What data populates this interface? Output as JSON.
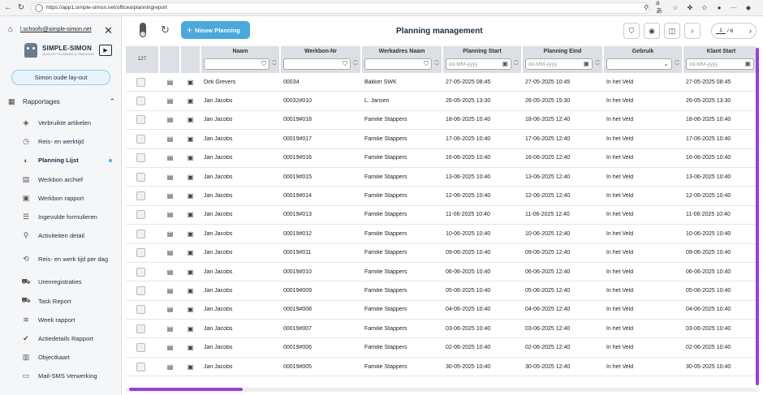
{
  "browser": {
    "url": "https://app1.simple-simon.net/officea/planningreport"
  },
  "sidebar": {
    "user_email": "l.schoofs@simple-simon.net",
    "logo_text": "SIMPLE-SIMON",
    "logo_subtext": "QUALITY PLANNING & TRACKING",
    "old_layout_label": "Simon oude lay-out",
    "section_label": "Rapportages",
    "items": [
      {
        "label": "Verbruikte artikelen",
        "icon": "cube-icon"
      },
      {
        "label": "Reis- en werktijd",
        "icon": "clock-icon"
      },
      {
        "label": "Planning Lijst",
        "icon": "planning-icon",
        "active": true
      },
      {
        "label": "Werkbon archief",
        "icon": "archive-icon"
      },
      {
        "label": "Werkbon rapport",
        "icon": "clipboard-icon"
      },
      {
        "label": "Ingevulde formulieren",
        "icon": "forms-icon"
      },
      {
        "label": "Activiteiten detail",
        "icon": "activity-icon"
      },
      {
        "label": "Reis- en werk tijd per dag",
        "icon": "route-icon"
      },
      {
        "label": "Urenregistraties",
        "icon": "hours-icon"
      },
      {
        "label": "Task Report",
        "icon": "task-icon"
      },
      {
        "label": "Week rapport",
        "icon": "layers-icon"
      },
      {
        "label": "Actiedetails Rapport",
        "icon": "action-icon"
      },
      {
        "label": "Objectkaart",
        "icon": "object-icon"
      },
      {
        "label": "Mail-SMS Verwerking",
        "icon": "message-icon"
      }
    ]
  },
  "toolbar": {
    "new_planning_label": "Nieuw Planning",
    "page_title": "Planning management",
    "pager_current": "1",
    "pager_total": "/ 6"
  },
  "grid": {
    "row_count": "127",
    "columns": {
      "naam": "Naam",
      "werkbon": "Werkbon-Nr",
      "adres": "Werkadres Naam",
      "start": "Planning Start",
      "eind": "Planning Eind",
      "gebruik": "Gebruik",
      "klant": "Klant Start"
    },
    "date_placeholder": "dd-MM-yyyy",
    "rows": [
      {
        "naam": "Dirk Grevers",
        "werkbon": "00034",
        "adres": "Bakker SWK",
        "start": "27-05-2025 08:45",
        "eind": "27-05-2025 10:45",
        "gebruik": "In het Veld",
        "klant": "27-05-2025 08:45"
      },
      {
        "naam": "Jan Jacobs",
        "werkbon": "00032#010",
        "adres": "L. Jansen",
        "start": "26-05-2025 13:30",
        "eind": "26-05-2025 15:30",
        "gebruik": "In het Veld",
        "klant": "26-05-2025 13:30"
      },
      {
        "naam": "Jan Jacobs",
        "werkbon": "00019#018",
        "adres": "Familie Stappers",
        "start": "18-06-2025 10:40",
        "eind": "18-06-2025 12:40",
        "gebruik": "In het Veld",
        "klant": "18-06-2025 10:40"
      },
      {
        "naam": "Jan Jacobs",
        "werkbon": "00019#017",
        "adres": "Familie Stappers",
        "start": "17-06-2025 10:40",
        "eind": "17-06-2025 12:40",
        "gebruik": "In het Veld",
        "klant": "17-06-2025 10:40"
      },
      {
        "naam": "Jan Jacobs",
        "werkbon": "00019#016",
        "adres": "Familie Stappers",
        "start": "16-06-2025 10:40",
        "eind": "16-06-2025 12:40",
        "gebruik": "In het Veld",
        "klant": "16-06-2025 10:40"
      },
      {
        "naam": "Jan Jacobs",
        "werkbon": "00019#015",
        "adres": "Familie Stappers",
        "start": "13-06-2025 10:40",
        "eind": "13-06-2025 12:40",
        "gebruik": "In het Veld",
        "klant": "13-06-2025 10:40"
      },
      {
        "naam": "Jan Jacobs",
        "werkbon": "00019#014",
        "adres": "Familie Stappers",
        "start": "12-06-2025 10:40",
        "eind": "12-06-2025 12:40",
        "gebruik": "In het Veld",
        "klant": "12-06-2025 10:40"
      },
      {
        "naam": "Jan Jacobs",
        "werkbon": "00019#013",
        "adres": "Familie Stappers",
        "start": "11-06-2025 10:40",
        "eind": "11-06-2025 12:40",
        "gebruik": "In het Veld",
        "klant": "11-06-2025 10:40"
      },
      {
        "naam": "Jan Jacobs",
        "werkbon": "00019#012",
        "adres": "Familie Stappers",
        "start": "10-06-2025 10:40",
        "eind": "10-06-2025 12:40",
        "gebruik": "In het Veld",
        "klant": "10-06-2025 10:40"
      },
      {
        "naam": "Jan Jacobs",
        "werkbon": "00019#011",
        "adres": "Familie Stappers",
        "start": "09-06-2025 10:40",
        "eind": "09-06-2025 12:40",
        "gebruik": "In het Veld",
        "klant": "09-06-2025 10:40"
      },
      {
        "naam": "Jan Jacobs",
        "werkbon": "00019#010",
        "adres": "Familie Stappers",
        "start": "06-06-2025 10:40",
        "eind": "06-06-2025 12:40",
        "gebruik": "In het Veld",
        "klant": "06-06-2025 10:40"
      },
      {
        "naam": "Jan Jacobs",
        "werkbon": "00019#009",
        "adres": "Familie Stappers",
        "start": "05-06-2025 10:40",
        "eind": "05-06-2025 12:40",
        "gebruik": "In het Veld",
        "klant": "05-06-2025 10:40"
      },
      {
        "naam": "Jan Jacobs",
        "werkbon": "00019#008",
        "adres": "Familie Stappers",
        "start": "04-06-2025 10:40",
        "eind": "04-06-2025 12:40",
        "gebruik": "In het Veld",
        "klant": "04-06-2025 10:40"
      },
      {
        "naam": "Jan Jacobs",
        "werkbon": "00019#007",
        "adres": "Familie Stappers",
        "start": "03-06-2025 10:40",
        "eind": "03-06-2025 12:40",
        "gebruik": "In het Veld",
        "klant": "03-06-2025 10:40"
      },
      {
        "naam": "Jan Jacobs",
        "werkbon": "00019#006",
        "adres": "Familie Stappers",
        "start": "02-06-2025 10:40",
        "eind": "02-06-2025 12:40",
        "gebruik": "In het Veld",
        "klant": "02-06-2025 10:40"
      },
      {
        "naam": "Jan Jacobs",
        "werkbon": "00019#005",
        "adres": "Familie Stappers",
        "start": "30-05-2025 10:40",
        "eind": "30-05-2025 12:40",
        "gebruik": "In het Veld",
        "klant": "30-05-2025 10:40"
      }
    ]
  }
}
